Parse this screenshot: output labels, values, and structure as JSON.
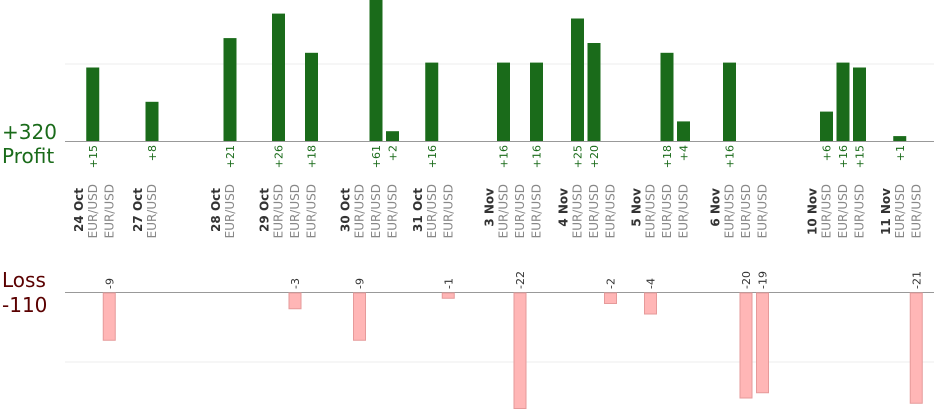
{
  "chart_data": {
    "type": "bar",
    "profit_summary": {
      "total": "+320",
      "label": "Profit"
    },
    "loss_summary": {
      "total": "-110",
      "label": "Loss"
    },
    "colors": {
      "profit_bar": "#1a6b1a",
      "profit_text": "#1a6b1a",
      "loss_bar": "#ffb6b6",
      "loss_border": "#e69a9a",
      "loss_text": "#333333",
      "loss_label": "#5a0000",
      "axis": "#999999",
      "grid": "#eeeeee",
      "pair_text": "#888888",
      "date_text": "#333333"
    },
    "dates": [
      {
        "label": "24 Oct",
        "trades": [
          {
            "pair": "EUR/USD",
            "value": 15
          },
          {
            "pair": "EUR/USD",
            "value": -9
          }
        ]
      },
      {
        "label": "27 Oct",
        "trades": [
          {
            "pair": "EUR/USD",
            "value": 8
          }
        ]
      },
      {
        "label": "28 Oct",
        "trades": [
          {
            "pair": "EUR/USD",
            "value": 21
          }
        ]
      },
      {
        "label": "29 Oct",
        "trades": [
          {
            "pair": "EUR/USD",
            "value": 26
          },
          {
            "pair": "EUR/USD",
            "value": -3
          },
          {
            "pair": "EUR/USD",
            "value": 18
          }
        ]
      },
      {
        "label": "30 Oct",
        "trades": [
          {
            "pair": "EUR/USD",
            "value": -9
          },
          {
            "pair": "EUR/USD",
            "value": 61
          },
          {
            "pair": "EUR/USD",
            "value": 2
          }
        ]
      },
      {
        "label": "31 Oct",
        "trades": [
          {
            "pair": "EUR/USD",
            "value": 16
          },
          {
            "pair": "EUR/USD",
            "value": -1
          }
        ]
      },
      {
        "label": "3 Nov",
        "trades": [
          {
            "pair": "EUR/USD",
            "value": 16
          },
          {
            "pair": "EUR/USD",
            "value": -22
          },
          {
            "pair": "EUR/USD",
            "value": 16
          }
        ]
      },
      {
        "label": "4 Nov",
        "trades": [
          {
            "pair": "EUR/USD",
            "value": 25
          },
          {
            "pair": "EUR/USD",
            "value": 20
          },
          {
            "pair": "EUR/USD",
            "value": -2
          }
        ]
      },
      {
        "label": "5 Nov",
        "trades": [
          {
            "pair": "EUR/USD",
            "value": -4
          },
          {
            "pair": "EUR/USD",
            "value": 18
          },
          {
            "pair": "EUR/USD",
            "value": 4
          }
        ]
      },
      {
        "label": "6 Nov",
        "trades": [
          {
            "pair": "EUR/USD",
            "value": 16
          },
          {
            "pair": "EUR/USD",
            "value": -20
          },
          {
            "pair": "EUR/USD",
            "value": -19
          }
        ]
      },
      {
        "label": "10 Nov",
        "trades": [
          {
            "pair": "EUR/USD",
            "value": 6
          },
          {
            "pair": "EUR/USD",
            "value": 16
          },
          {
            "pair": "EUR/USD",
            "value": 15
          }
        ]
      },
      {
        "label": "11 Nov",
        "trades": [
          {
            "pair": "EUR/USD",
            "value": 1
          },
          {
            "pair": "EUR/USD",
            "value": -21
          }
        ]
      }
    ]
  }
}
